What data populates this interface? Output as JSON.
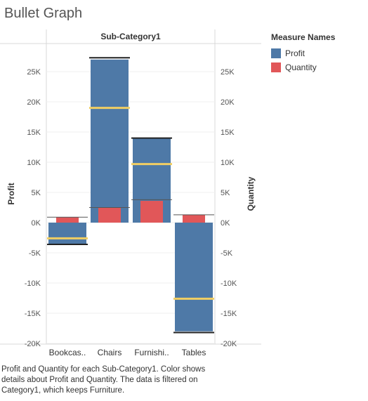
{
  "title": "Bullet Graph",
  "caption": "Profit and Quantity for each Sub-Category1.  Color shows details about Profit and Quantity. The data is filtered on Category1, which keeps Furniture.",
  "colors": {
    "profit": "#4e79a7",
    "quantity": "#e15759",
    "reference_line": "#f1ce63",
    "target_line": "#222222"
  },
  "chart_data": {
    "type": "bar",
    "header": "Sub-Category1",
    "categories": [
      "Bookcas..",
      "Chairs",
      "Furnishi..",
      "Tables"
    ],
    "ylabel_left": "Profit",
    "ylabel_right": "Quantity",
    "ylim": [
      -21000,
      27500
    ],
    "yticks": [
      25000,
      20000,
      15000,
      10000,
      5000,
      0,
      -5000,
      -10000,
      -15000,
      -20000
    ],
    "ytick_labels": [
      "25K",
      "20K",
      "15K",
      "10K",
      "5K",
      "0K",
      "-5K",
      "-10K",
      "-15K",
      "-20K"
    ],
    "series": [
      {
        "name": "Profit",
        "values": [
          -3500,
          27000,
          14000,
          -18000
        ]
      },
      {
        "name": "Quantity",
        "values": [
          900,
          2500,
          3600,
          1300
        ]
      }
    ],
    "reference_values": [
      -2600,
      19000,
      9700,
      -12600
    ],
    "target_values": [
      -3600,
      27300,
      14000,
      -18200
    ],
    "quantity_reference_values": [
      900,
      2500,
      3800,
      1300
    ],
    "legend": {
      "title": "Measure Names",
      "position": "right",
      "items": [
        "Profit",
        "Quantity"
      ]
    },
    "grid": true
  }
}
